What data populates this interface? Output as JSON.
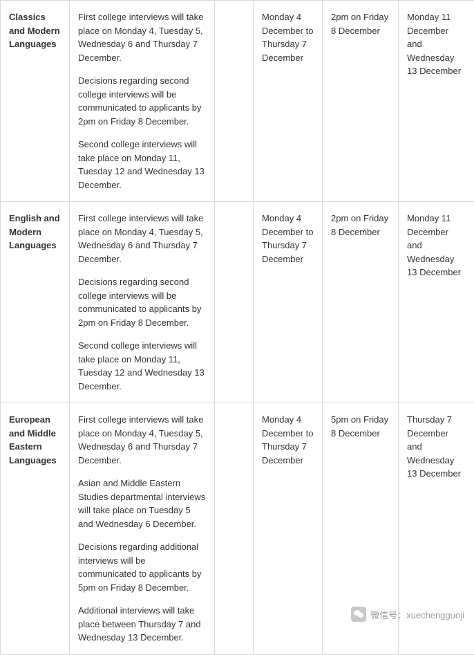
{
  "table": {
    "border_color": "#d9d9d9",
    "text_color": "#333333",
    "font_size": 13,
    "rows": [
      {
        "subject": "Classics and Modern Languages",
        "detail_paragraphs": [
          "First college interviews will take place on Monday 4, Tuesday 5, Wednesday 6 and Thursday 7 December.",
          "Decisions regarding second college interviews will be communicated to applicants by 2pm on Friday 8 December.",
          "Second college interviews will take place on Monday 11, Tuesday 12 and Wednesday 13 December."
        ],
        "col_empty": "",
        "date_range": "Monday 4 December to Thursday 7 December",
        "deadline": "2pm on Friday 8 December",
        "additional_dates": "Monday 11 December and Wednesday 13 December"
      },
      {
        "subject": "English and Modern Languages",
        "detail_paragraphs": [
          "First college interviews will take place on Monday 4, Tuesday 5, Wednesday 6 and Thursday 7 December.",
          "Decisions regarding second college interviews will be communicated to applicants by 2pm on Friday 8 December.",
          "Second college interviews will take place on Monday 11, Tuesday 12 and Wednesday 13 December."
        ],
        "col_empty": "",
        "date_range": "Monday 4 December to Thursday 7 December",
        "deadline": "2pm on Friday 8 December",
        "additional_dates": "Monday 11 December and Wednesday 13 December"
      },
      {
        "subject": "European and Middle Eastern Languages",
        "detail_paragraphs": [
          "First college interviews will take place on Monday 4, Tuesday 5, Wednesday 6 and Thursday 7 December.",
          "Asian and Middle Eastern Studies departmental interviews will take place on Tuesday 5 and Wednesday 6 December.",
          "Decisions regarding additional interviews will be communicated to applicants by 5pm on Friday 8 December.",
          "Additional interviews will take place between Thursday 7 and Wednesday 13 December."
        ],
        "col_empty": "",
        "date_range": "Monday 4 December to Thursday 7 December",
        "deadline": "5pm on Friday 8 December",
        "additional_dates": "Thursday 7 December and Wednesday 13 December"
      }
    ]
  },
  "watermark": {
    "label": "微信号：xuechengguoji",
    "text_color": "#9a9a9a",
    "icon_bg": "#c9c9c9"
  }
}
